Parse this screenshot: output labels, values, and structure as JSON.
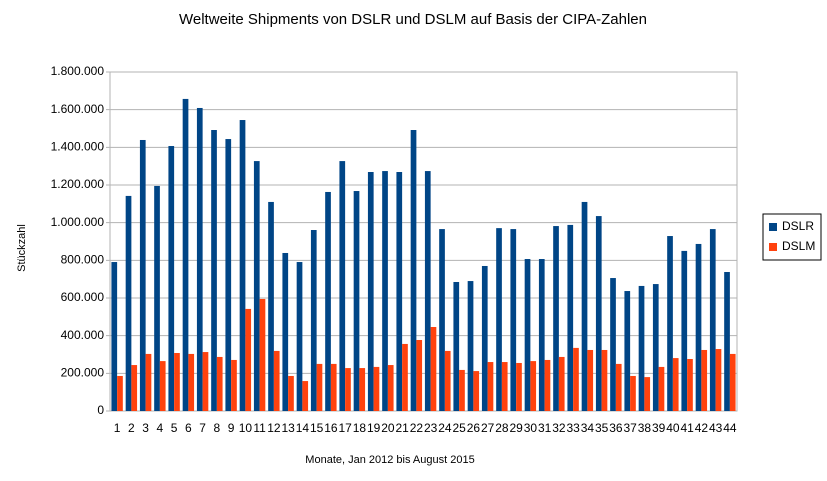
{
  "chart_data": {
    "type": "bar",
    "title": "Weltweite Shipments von DSLR und DSLM auf Basis der CIPA-Zahlen",
    "x_label": "Monate, Jan 2012 bis August 2015",
    "y_label": "Stückzahl",
    "categories": [
      "1",
      "2",
      "3",
      "4",
      "5",
      "6",
      "7",
      "8",
      "9",
      "10",
      "11",
      "12",
      "13",
      "14",
      "15",
      "16",
      "17",
      "18",
      "19",
      "20",
      "21",
      "22",
      "23",
      "24",
      "25",
      "26",
      "27",
      "28",
      "29",
      "30",
      "31",
      "32",
      "33",
      "34",
      "35",
      "36",
      "37",
      "38",
      "39",
      "40",
      "41",
      "42",
      "43",
      "44"
    ],
    "series": [
      {
        "name": "DSLR",
        "color": "#004586",
        "values": [
          791000,
          1142000,
          1439000,
          1195000,
          1407000,
          1657000,
          1609000,
          1492000,
          1444000,
          1545000,
          1327000,
          1110000,
          839000,
          791000,
          961000,
          1163000,
          1327000,
          1168000,
          1269000,
          1274000,
          1269000,
          1492000,
          1274000,
          966000,
          685000,
          690000,
          770000,
          971000,
          966000,
          807000,
          807000,
          982000,
          988000,
          1110000,
          1035000,
          706000,
          637000,
          664000,
          674000,
          929000,
          850000,
          887000,
          966000,
          738000
        ]
      },
      {
        "name": "DSLM",
        "color": "#ff420e",
        "values": [
          186000,
          244000,
          303000,
          265000,
          308000,
          303000,
          313000,
          287000,
          271000,
          542000,
          595000,
          319000,
          186000,
          159000,
          250000,
          250000,
          228000,
          228000,
          234000,
          244000,
          356000,
          377000,
          446000,
          319000,
          218000,
          212000,
          260000,
          260000,
          255000,
          265000,
          271000,
          287000,
          335000,
          324000,
          324000,
          250000,
          186000,
          180000,
          234000,
          281000,
          276000,
          324000,
          329000,
          303000
        ]
      }
    ],
    "ylim": [
      0,
      1800000
    ],
    "yticks": [
      0,
      {
        "value": 200000,
        "label": "200.000"
      },
      {
        "value": 400000,
        "label": "400.000"
      },
      {
        "value": 600000,
        "label": "600.000"
      },
      {
        "value": 800000,
        "label": "800.000"
      },
      {
        "value": 1000000,
        "label": "1.000.000"
      },
      {
        "value": 1200000,
        "label": "1.200.000"
      },
      {
        "value": 1400000,
        "label": "1.400.000"
      },
      {
        "value": 1600000,
        "label": "1.600.000"
      },
      {
        "value": 1800000,
        "label": "1.800.000"
      }
    ],
    "grid": true,
    "legend": "right"
  }
}
